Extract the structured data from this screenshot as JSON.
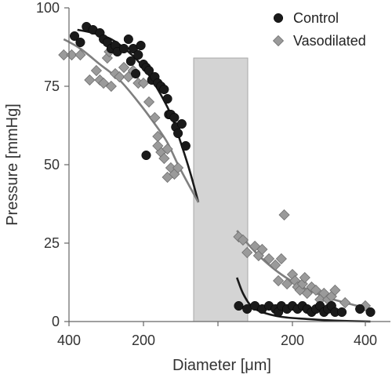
{
  "chart_data": {
    "type": "scatter",
    "xlabel": "Diameter [μm]",
    "ylabel": "Pressure [mmHg]",
    "ylim": [
      0,
      100
    ],
    "yticks": [
      "0",
      "25",
      "50",
      "75",
      "100"
    ],
    "left_panel": {
      "xlim": [
        400,
        100
      ],
      "xticks": [
        "400",
        "200"
      ]
    },
    "right_panel": {
      "xlim": [
        100,
        400
      ],
      "xticks": [
        "200",
        "400"
      ]
    },
    "gap_band": {
      "ymin": 0,
      "ymax": 84
    },
    "legend": {
      "placement": "top-right"
    },
    "series": [
      {
        "name": "Control",
        "marker": "circle",
        "color": "#1a1a1a",
        "left_points": [
          [
            380,
            91
          ],
          [
            360,
            89
          ],
          [
            340,
            94
          ],
          [
            320,
            93
          ],
          [
            300,
            92
          ],
          [
            290,
            90
          ],
          [
            280,
            89
          ],
          [
            270,
            87
          ],
          [
            260,
            88
          ],
          [
            255,
            86
          ],
          [
            240,
            87
          ],
          [
            230,
            90
          ],
          [
            225,
            83
          ],
          [
            220,
            87
          ],
          [
            215,
            79
          ],
          [
            210,
            85
          ],
          [
            205,
            88
          ],
          [
            200,
            82
          ],
          [
            195,
            81
          ],
          [
            190,
            80
          ],
          [
            185,
            77
          ],
          [
            180,
            78
          ],
          [
            175,
            76
          ],
          [
            170,
            75
          ],
          [
            165,
            74
          ],
          [
            160,
            71
          ],
          [
            158,
            66
          ],
          [
            155,
            66
          ],
          [
            150,
            65
          ],
          [
            148,
            62
          ],
          [
            145,
            60
          ],
          [
            140,
            63
          ],
          [
            135,
            56
          ],
          [
            195,
            53
          ]
        ],
        "right_points": [
          [
            120,
            5
          ],
          [
            130,
            4
          ],
          [
            140,
            5
          ],
          [
            150,
            4
          ],
          [
            160,
            5
          ],
          [
            170,
            4
          ],
          [
            175,
            3
          ],
          [
            180,
            5
          ],
          [
            190,
            4
          ],
          [
            200,
            5
          ],
          [
            210,
            4
          ],
          [
            220,
            5
          ],
          [
            230,
            4
          ],
          [
            240,
            3
          ],
          [
            250,
            4
          ],
          [
            260,
            5
          ],
          [
            270,
            3
          ],
          [
            280,
            4
          ],
          [
            290,
            5
          ],
          [
            300,
            3
          ],
          [
            320,
            3
          ],
          [
            380,
            4
          ],
          [
            420,
            3
          ]
        ],
        "fit_left": [
          [
            370,
            93
          ],
          [
            320,
            92
          ],
          [
            270,
            90
          ],
          [
            230,
            86
          ],
          [
            200,
            81
          ],
          [
            175,
            74
          ],
          [
            155,
            66
          ],
          [
            140,
            56
          ],
          [
            130,
            48
          ],
          [
            120,
            38
          ]
        ],
        "fit_right": [
          [
            118,
            14
          ],
          [
            125,
            9
          ],
          [
            135,
            5
          ],
          [
            150,
            3
          ],
          [
            180,
            1.5
          ],
          [
            230,
            0.8
          ],
          [
            300,
            0.3
          ],
          [
            420,
            0
          ]
        ]
      },
      {
        "name": "Vasodilated",
        "marker": "diamond",
        "color": "#9a9a9a",
        "left_points": [
          [
            420,
            85
          ],
          [
            390,
            85
          ],
          [
            360,
            85
          ],
          [
            330,
            77
          ],
          [
            310,
            80
          ],
          [
            300,
            77
          ],
          [
            290,
            76
          ],
          [
            280,
            84
          ],
          [
            275,
            86
          ],
          [
            270,
            75
          ],
          [
            260,
            79
          ],
          [
            250,
            78
          ],
          [
            240,
            81
          ],
          [
            230,
            78
          ],
          [
            220,
            80
          ],
          [
            210,
            76
          ],
          [
            200,
            76
          ],
          [
            190,
            70
          ],
          [
            180,
            65
          ],
          [
            175,
            59
          ],
          [
            170,
            54
          ],
          [
            165,
            52
          ],
          [
            160,
            55
          ],
          [
            155,
            49
          ],
          [
            150,
            47
          ],
          [
            145,
            49
          ],
          [
            160,
            46
          ],
          [
            175,
            56
          ]
        ],
        "right_points": [
          [
            120,
            27
          ],
          [
            125,
            26
          ],
          [
            130,
            22
          ],
          [
            140,
            24
          ],
          [
            145,
            21
          ],
          [
            150,
            23
          ],
          [
            160,
            20
          ],
          [
            170,
            18
          ],
          [
            175,
            13
          ],
          [
            180,
            20
          ],
          [
            185,
            34
          ],
          [
            190,
            12
          ],
          [
            200,
            15
          ],
          [
            205,
            13
          ],
          [
            210,
            11
          ],
          [
            215,
            10
          ],
          [
            220,
            12
          ],
          [
            225,
            14
          ],
          [
            230,
            9
          ],
          [
            240,
            11
          ],
          [
            250,
            10
          ],
          [
            260,
            7
          ],
          [
            270,
            9
          ],
          [
            280,
            7
          ],
          [
            290,
            8
          ],
          [
            300,
            10
          ],
          [
            330,
            6
          ],
          [
            400,
            5
          ]
        ],
        "fit_left": [
          [
            420,
            90
          ],
          [
            360,
            87
          ],
          [
            300,
            82
          ],
          [
            250,
            77
          ],
          [
            210,
            70
          ],
          [
            180,
            63
          ],
          [
            160,
            57
          ],
          [
            145,
            50
          ],
          [
            130,
            43
          ],
          [
            120,
            38
          ]
        ],
        "fit_right": [
          [
            118,
            29
          ],
          [
            130,
            25
          ],
          [
            150,
            20
          ],
          [
            180,
            15
          ],
          [
            220,
            11
          ],
          [
            270,
            8
          ],
          [
            330,
            6
          ],
          [
            420,
            4
          ]
        ]
      }
    ]
  }
}
